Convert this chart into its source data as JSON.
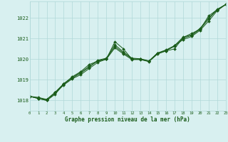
{
  "title": "Graphe pression niveau de la mer (hPa)",
  "bg_color": "#d8f0f0",
  "grid_color": "#b0d8d8",
  "line_color": "#1a5c1a",
  "xlim": [
    0,
    23
  ],
  "ylim": [
    1017.5,
    1022.8
  ],
  "xtick_labels": [
    "0",
    "1",
    "2",
    "3",
    "4",
    "5",
    "6",
    "7",
    "8",
    "9",
    "10",
    "11",
    "12",
    "13",
    "14",
    "15",
    "16",
    "17",
    "18",
    "19",
    "20",
    "21",
    "22",
    "23"
  ],
  "yticks": [
    1018,
    1019,
    1020,
    1021,
    1022
  ],
  "series": [
    [
      1018.2,
      1018.1,
      1018.0,
      1018.3,
      1018.8,
      1019.15,
      1019.4,
      1019.75,
      1019.9,
      1020.0,
      1020.85,
      1020.5,
      1020.0,
      1020.0,
      1019.9,
      1020.3,
      1020.4,
      1020.5,
      1021.05,
      1021.25,
      1021.45,
      1022.1,
      1022.4,
      1022.65
    ],
    [
      1018.2,
      1018.1,
      1018.0,
      1018.35,
      1018.75,
      1019.05,
      1019.25,
      1019.55,
      1019.85,
      1020.0,
      1020.55,
      1020.25,
      1019.98,
      1019.98,
      1019.88,
      1020.25,
      1020.4,
      1020.65,
      1020.95,
      1021.1,
      1021.4,
      1021.85,
      1022.35,
      1022.65
    ],
    [
      1018.2,
      1018.1,
      1018.05,
      1018.38,
      1018.78,
      1019.08,
      1019.32,
      1019.62,
      1019.92,
      1020.02,
      1020.62,
      1020.3,
      1020.02,
      1020.0,
      1019.9,
      1020.28,
      1020.43,
      1020.62,
      1021.02,
      1021.15,
      1021.45,
      1021.95,
      1022.4,
      1022.65
    ],
    [
      1018.2,
      1018.15,
      1018.05,
      1018.4,
      1018.82,
      1019.12,
      1019.36,
      1019.66,
      1019.95,
      1020.05,
      1020.7,
      1020.35,
      1020.05,
      1020.02,
      1019.92,
      1020.3,
      1020.45,
      1020.66,
      1021.07,
      1021.18,
      1021.5,
      1022.0,
      1022.42,
      1022.65
    ]
  ]
}
